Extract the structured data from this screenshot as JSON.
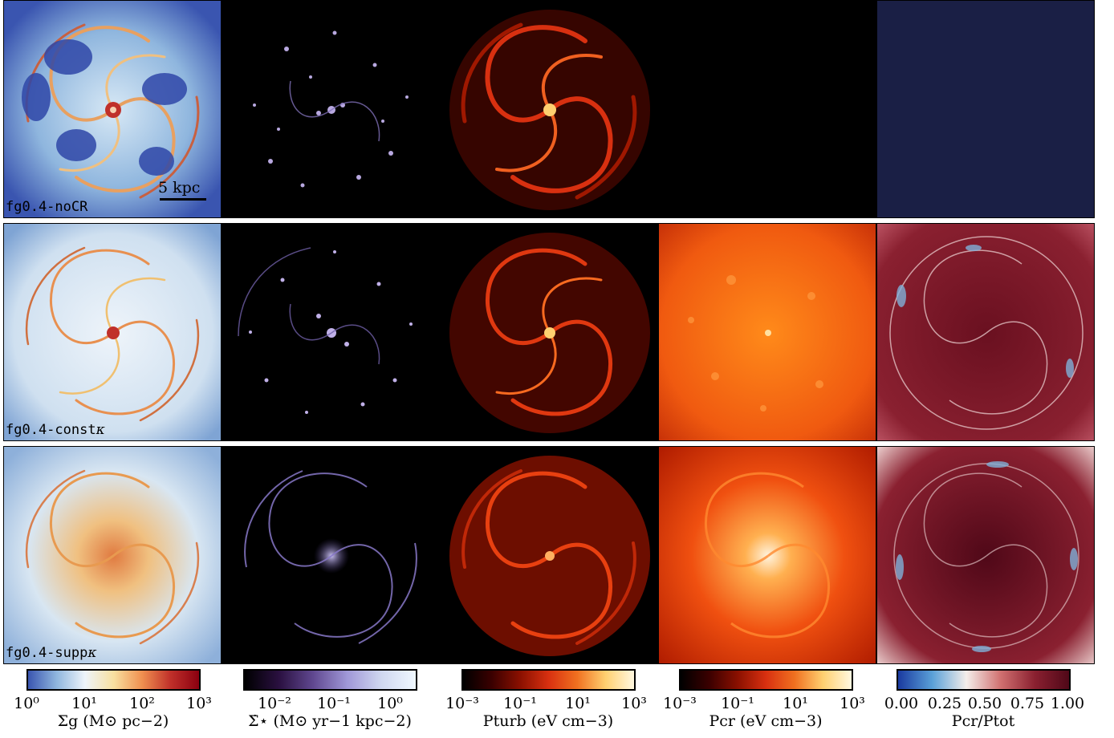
{
  "chart_data": {
    "type": "image-grid",
    "rows": [
      {
        "label": "fg0.4-noCR",
        "label_main": "fg0.4-noCR",
        "label_sym": ""
      },
      {
        "label": "fg0.4-constκ",
        "label_main": "fg0.4-const",
        "label_sym": "κ"
      },
      {
        "label": "fg0.4-suppκ",
        "label_main": "fg0.4-supp",
        "label_sym": "κ"
      }
    ],
    "scale_bar": "5 kpc",
    "colorbars": [
      {
        "label": "Σg (M⊙ pc−2)",
        "ticks": [
          "10^0",
          "10^1",
          "10^2",
          "10^3"
        ],
        "tick_display": [
          "10⁰",
          "10¹",
          "10²",
          "10³"
        ],
        "colormap": "blue-white-red"
      },
      {
        "label": "Σ̇⋆ (M⊙ yr−1 kpc−2)",
        "ticks": [
          "10^-2",
          "10^-1",
          "10^0"
        ],
        "tick_display": [
          "10⁻²",
          "10⁻¹",
          "10⁰"
        ],
        "colormap": "purple"
      },
      {
        "label": "Pturb (eV cm−3)",
        "ticks": [
          "10^-3",
          "10^-1",
          "10^1",
          "10^3"
        ],
        "tick_display": [
          "10⁻³",
          "10⁻¹",
          "10¹",
          "10³"
        ],
        "colormap": "hot"
      },
      {
        "label": "Pcr (eV cm−3)",
        "ticks": [
          "10^-3",
          "10^-1",
          "10^1",
          "10^3"
        ],
        "tick_display": [
          "10⁻³",
          "10⁻¹",
          "10¹",
          "10³"
        ],
        "colormap": "hot"
      },
      {
        "label": "Pcr/Ptot",
        "ticks": [
          "0.00",
          "0.25",
          "0.50",
          "0.75",
          "1.00"
        ],
        "tick_display": [
          "0.00",
          "0.25",
          "0.50",
          "0.75",
          "1.00"
        ],
        "colormap": "blue-white-darkred"
      }
    ]
  },
  "colors": {
    "gas_bg": "#3a55b0",
    "navy_empty": "#1a1f45",
    "black": "#000000"
  }
}
